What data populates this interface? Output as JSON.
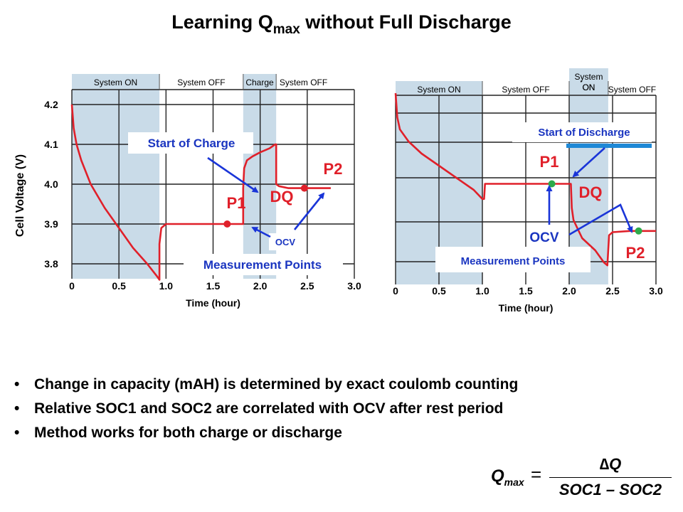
{
  "title": {
    "main": "Learning Q",
    "sub": "max",
    "rest": " without Full Discharge"
  },
  "bullets": [
    "Change in capacity (mAH) is determined by exact coulomb counting",
    "Relative SOC1 and SOC2 are correlated with OCV after rest period",
    "Method works for both charge or discharge"
  ],
  "formula": {
    "lhs": "Q",
    "lhs_sub": "max",
    "eq": "=",
    "numerator": "∆Q",
    "denominator": "SOC1 – SOC2"
  },
  "colors": {
    "curve": "#e0202a",
    "marker_red": "#e0202a",
    "marker_green": "#2eaa4a",
    "arrow": "#1a35d8",
    "shade": "#c9dbe8",
    "blue_text": "#1a35c0"
  },
  "chart_data": [
    {
      "type": "line",
      "title": "",
      "xlabel": "Time (hour)",
      "ylabel": "Cell Voltage (V)",
      "xlim": [
        0,
        3.0
      ],
      "ylim": [
        3.75,
        4.25
      ],
      "x_ticks": [
        "0",
        "0.5",
        "1.0",
        "1.5",
        "2.0",
        "2.5",
        "3.0"
      ],
      "y_ticks": [
        "4.2",
        "4.1",
        "4.0",
        "3.9",
        "3.8"
      ],
      "regions": [
        {
          "label": "System ON",
          "x": [
            0,
            0.93
          ],
          "shaded": true
        },
        {
          "label": "System OFF",
          "x": [
            0.93,
            1.82
          ],
          "shaded": false
        },
        {
          "label": "Charge",
          "x": [
            1.82,
            2.17
          ],
          "shaded": true
        },
        {
          "label": "System OFF",
          "x": [
            2.17,
            2.75
          ],
          "shaded": false
        }
      ],
      "series": [
        {
          "x": [
            0,
            0.02,
            0.05,
            0.1,
            0.2,
            0.35,
            0.5,
            0.65,
            0.8,
            0.9,
            0.93,
            0.93,
            0.95,
            1.0,
            1.2,
            1.5,
            1.8,
            1.82,
            1.82,
            1.83,
            1.86,
            1.92,
            2.0,
            2.1,
            2.16,
            2.17,
            2.17,
            2.2,
            2.3,
            2.5,
            2.75
          ],
          "y": [
            4.2,
            4.14,
            4.1,
            4.06,
            4.0,
            3.94,
            3.89,
            3.84,
            3.8,
            3.77,
            3.76,
            3.85,
            3.89,
            3.9,
            3.9,
            3.9,
            3.9,
            3.9,
            3.99,
            4.04,
            4.06,
            4.07,
            4.08,
            4.09,
            4.1,
            4.1,
            4.0,
            3.995,
            3.99,
            3.99,
            3.99
          ]
        }
      ],
      "markers": [
        {
          "label": "P1",
          "x": 1.65,
          "y": 3.9,
          "color": "red"
        },
        {
          "label": "P2",
          "x": 2.47,
          "y": 3.99,
          "color": "red"
        }
      ],
      "annotations": [
        "Start of Charge",
        "DQ",
        "OCV",
        "Measurement Points"
      ]
    },
    {
      "type": "line",
      "title": "",
      "xlabel": "Time (hour)",
      "ylabel": "",
      "xlim": [
        0,
        3.0
      ],
      "x_ticks": [
        "0",
        "0.5",
        "1.0",
        "1.5",
        "2.0",
        "2.5",
        "3.0"
      ],
      "regions": [
        {
          "label": "System ON",
          "x": [
            0,
            1.0
          ],
          "shaded": true
        },
        {
          "label": "System OFF",
          "x": [
            1.0,
            2.0
          ],
          "shaded": false
        },
        {
          "label": "System ON",
          "x": [
            2.0,
            2.45
          ],
          "shaded": true
        },
        {
          "label": "System OFF",
          "x": [
            2.45,
            3.0
          ],
          "shaded": false
        }
      ],
      "series": [
        {
          "x": [
            0,
            0.02,
            0.05,
            0.15,
            0.3,
            0.5,
            0.7,
            0.9,
            1.0,
            1.02,
            1.03,
            1.1,
            1.5,
            1.8,
            2.0,
            2.02,
            2.03,
            2.05,
            2.15,
            2.3,
            2.4,
            2.44,
            2.46,
            2.5,
            2.7,
            3.0
          ],
          "y": [
            4.14,
            4.1,
            4.08,
            4.06,
            4.04,
            4.02,
            4.0,
            3.98,
            3.965,
            3.965,
            3.99,
            3.99,
            3.99,
            3.99,
            3.99,
            3.99,
            3.95,
            3.93,
            3.9,
            3.88,
            3.86,
            3.855,
            3.905,
            3.91,
            3.912,
            3.912
          ]
        }
      ],
      "markers": [
        {
          "label": "P1",
          "x": 1.8,
          "y": 3.99,
          "color": "green"
        },
        {
          "label": "P2",
          "x": 2.8,
          "y": 3.912,
          "color": "green"
        }
      ],
      "annotations": [
        "Start of Discharge",
        "DQ",
        "OCV",
        "Measurement  Points"
      ]
    }
  ]
}
